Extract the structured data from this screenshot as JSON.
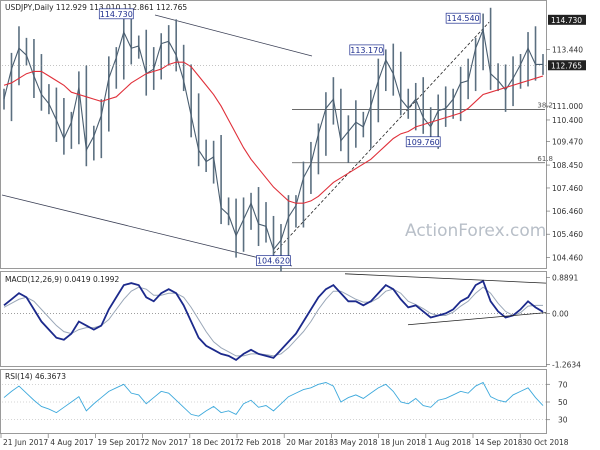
{
  "chart_data": {
    "type": "line",
    "x": [
      "21 Jun 2017",
      "4 Aug 2017",
      "19 Sep 2017",
      "2 Nov 2017",
      "18 Dec 2017",
      "2 Feb 2018",
      "20 Mar 2018",
      "3 May 2018",
      "18 Jun 2018",
      "1 Aug 2018",
      "14 Sep 2018",
      "30 Oct 2018"
    ],
    "watermark": "ActionForex.com",
    "price_panel": {
      "title": "USDJPY,Daily 112.929 113.010 112.861 112.765",
      "y_ticks": [
        "114.730",
        "113.440",
        "112.765",
        "111.000",
        "110.400",
        "109.470",
        "108.450",
        "107.460",
        "106.460",
        "105.460",
        "104.460"
      ],
      "current_price": "112.765",
      "ylim": [
        104.0,
        115.5
      ],
      "close": [
        111.3,
        112.6,
        113.5,
        113.2,
        112.3,
        111.5,
        111.1,
        110.4,
        109.6,
        110.3,
        111.8,
        109.1,
        109.7,
        110.6,
        112.2,
        113.1,
        114.2,
        113.5,
        113.6,
        112.4,
        112.6,
        113.7,
        113.8,
        113.2,
        112.1,
        110.6,
        109.1,
        108.6,
        108.8,
        106.6,
        106.3,
        105.4,
        106.1,
        106.8,
        105.9,
        105.8,
        104.8,
        105.2,
        106.2,
        106.7,
        107.9,
        108.5,
        109.8,
        110.9,
        111.3,
        109.5,
        109.9,
        110.3,
        110.1,
        111.0,
        112.1,
        113.0,
        112.4,
        111.3,
        110.9,
        111.3,
        110.5,
        110.1,
        110.8,
        110.9,
        111.3,
        112.0,
        112.1,
        113.5,
        114.3,
        112.4,
        112.1,
        111.7,
        112.2,
        112.8,
        113.5,
        112.8,
        112.8
      ],
      "moving_average": [
        111.9,
        112.0,
        112.2,
        112.4,
        112.5,
        112.5,
        112.3,
        112.1,
        111.9,
        111.6,
        111.5,
        111.4,
        111.3,
        111.2,
        111.3,
        111.4,
        111.7,
        112.0,
        112.2,
        112.4,
        112.5,
        112.6,
        112.8,
        112.9,
        112.9,
        112.7,
        112.3,
        111.9,
        111.5,
        111.0,
        110.4,
        109.8,
        109.2,
        108.7,
        108.3,
        107.9,
        107.5,
        107.2,
        106.9,
        106.8,
        106.8,
        106.9,
        107.1,
        107.4,
        107.7,
        107.9,
        108.1,
        108.3,
        108.5,
        108.7,
        109.0,
        109.3,
        109.6,
        109.8,
        109.9,
        110.1,
        110.2,
        110.3,
        110.4,
        110.5,
        110.6,
        110.7,
        110.9,
        111.2,
        111.5,
        111.6,
        111.7,
        111.8,
        111.9,
        112.0,
        112.1,
        112.2,
        112.3
      ],
      "annotations": [
        {
          "label": "114.730",
          "index": 15,
          "value": 114.73
        },
        {
          "label": "113.170",
          "index": 51,
          "value": 113.17
        },
        {
          "label": "114.540",
          "index": 64,
          "value": 114.54
        },
        {
          "label": "109.760",
          "index": 56,
          "value": 109.76
        },
        {
          "label": "104.620",
          "index": 36,
          "value": 104.62
        }
      ],
      "fib_levels": [
        {
          "label": "38.2",
          "value": 110.85
        },
        {
          "label": "61.8",
          "value": 108.55
        }
      ]
    },
    "macd_panel": {
      "title": "MACD(12,26,9) 0.0419 0.1992",
      "y_ticks": [
        "0.8891",
        "0.00",
        "-1.2634"
      ],
      "ylim": [
        -1.3,
        1.0
      ],
      "macd": [
        0.2,
        0.35,
        0.5,
        0.4,
        0.1,
        -0.2,
        -0.4,
        -0.6,
        -0.65,
        -0.5,
        -0.2,
        -0.3,
        -0.4,
        -0.3,
        0.1,
        0.4,
        0.7,
        0.75,
        0.7,
        0.4,
        0.3,
        0.5,
        0.6,
        0.5,
        0.2,
        -0.2,
        -0.6,
        -0.8,
        -0.9,
        -1.0,
        -1.05,
        -1.15,
        -1.0,
        -0.9,
        -1.0,
        -1.05,
        -1.1,
        -0.9,
        -0.7,
        -0.5,
        -0.2,
        0.1,
        0.4,
        0.6,
        0.7,
        0.5,
        0.3,
        0.3,
        0.2,
        0.3,
        0.5,
        0.7,
        0.6,
        0.35,
        0.15,
        0.2,
        0.05,
        -0.1,
        -0.05,
        0.0,
        0.1,
        0.3,
        0.4,
        0.7,
        0.8,
        0.3,
        0.05,
        -0.1,
        -0.05,
        0.1,
        0.3,
        0.15,
        0.04
      ],
      "signal": [
        0.15,
        0.25,
        0.35,
        0.4,
        0.3,
        0.1,
        -0.1,
        -0.3,
        -0.45,
        -0.5,
        -0.4,
        -0.35,
        -0.35,
        -0.3,
        -0.15,
        0.1,
        0.35,
        0.55,
        0.65,
        0.6,
        0.45,
        0.45,
        0.5,
        0.5,
        0.4,
        0.15,
        -0.15,
        -0.45,
        -0.7,
        -0.85,
        -0.95,
        -1.05,
        -1.05,
        -1.0,
        -1.0,
        -1.02,
        -1.05,
        -1.0,
        -0.85,
        -0.65,
        -0.45,
        -0.2,
        0.1,
        0.35,
        0.55,
        0.55,
        0.45,
        0.35,
        0.28,
        0.28,
        0.38,
        0.55,
        0.6,
        0.5,
        0.3,
        0.22,
        0.12,
        0.0,
        -0.05,
        -0.05,
        0.03,
        0.18,
        0.3,
        0.5,
        0.65,
        0.5,
        0.25,
        0.05,
        -0.05,
        0.02,
        0.18,
        0.2,
        0.2
      ]
    },
    "rsi_panel": {
      "title": "RSI(14) 46.3673",
      "y_ticks": [
        "70",
        "50",
        "30"
      ],
      "ylim": [
        15,
        85
      ],
      "rsi": [
        55,
        62,
        68,
        60,
        52,
        45,
        42,
        38,
        44,
        50,
        56,
        40,
        48,
        55,
        62,
        66,
        70,
        60,
        58,
        48,
        55,
        62,
        60,
        52,
        44,
        36,
        34,
        40,
        45,
        38,
        40,
        36,
        48,
        52,
        44,
        46,
        40,
        48,
        56,
        60,
        64,
        66,
        70,
        72,
        68,
        50,
        55,
        58,
        54,
        60,
        66,
        70,
        62,
        50,
        48,
        54,
        46,
        44,
        52,
        54,
        58,
        62,
        60,
        68,
        72,
        56,
        52,
        50,
        58,
        62,
        66,
        55,
        46
      ]
    }
  }
}
